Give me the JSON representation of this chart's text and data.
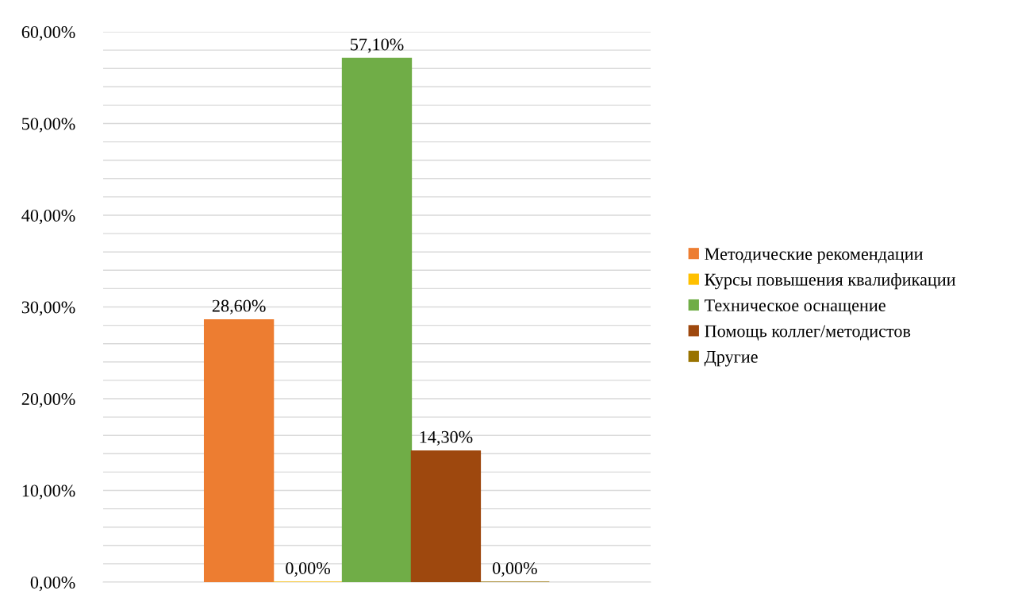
{
  "chart_data": {
    "type": "bar",
    "categories": [
      null
    ],
    "series": [
      {
        "name": "Методические рекомендации",
        "color": "#ed7d31",
        "values": [
          28.6
        ],
        "value_labels": [
          "28,60%"
        ]
      },
      {
        "name": "Курсы повышения квалификации",
        "color": "#ffc000",
        "values": [
          0
        ],
        "value_labels": [
          "0,00%"
        ]
      },
      {
        "name": "Техническое оснащение",
        "color": "#70ad47",
        "values": [
          57.1
        ],
        "value_labels": [
          "57,10%"
        ]
      },
      {
        "name": "Помощь коллег/методистов",
        "color": "#9e480e",
        "values": [
          14.3
        ],
        "value_labels": [
          "14,30%"
        ]
      },
      {
        "name": "Другие",
        "color": "#997300",
        "values": [
          0
        ],
        "value_labels": [
          "0,00%"
        ]
      }
    ],
    "ylim": [
      0,
      60
    ],
    "yticks": [
      {
        "value": 0,
        "label": "0,00%"
      },
      {
        "value": 2,
        "label": null
      },
      {
        "value": 4,
        "label": null
      },
      {
        "value": 6,
        "label": null
      },
      {
        "value": 8,
        "label": null
      },
      {
        "value": 10,
        "label": "10,00%"
      },
      {
        "value": 12,
        "label": null
      },
      {
        "value": 14,
        "label": null
      },
      {
        "value": 16,
        "label": null
      },
      {
        "value": 18,
        "label": null
      },
      {
        "value": 20,
        "label": "20,00%"
      },
      {
        "value": 22,
        "label": null
      },
      {
        "value": 24,
        "label": null
      },
      {
        "value": 26,
        "label": null
      },
      {
        "value": 28,
        "label": null
      },
      {
        "value": 30,
        "label": "30,00%"
      },
      {
        "value": 32,
        "label": null
      },
      {
        "value": 34,
        "label": null
      },
      {
        "value": 36,
        "label": null
      },
      {
        "value": 38,
        "label": null
      },
      {
        "value": 40,
        "label": "40,00%"
      },
      {
        "value": 42,
        "label": null
      },
      {
        "value": 44,
        "label": null
      },
      {
        "value": 46,
        "label": null
      },
      {
        "value": 48,
        "label": null
      },
      {
        "value": 50,
        "label": "50,00%"
      },
      {
        "value": 52,
        "label": null
      },
      {
        "value": 54,
        "label": null
      },
      {
        "value": 56,
        "label": null
      },
      {
        "value": 58,
        "label": null
      },
      {
        "value": 60,
        "label": "60,00%"
      }
    ],
    "grid": "y",
    "legend": "right"
  }
}
